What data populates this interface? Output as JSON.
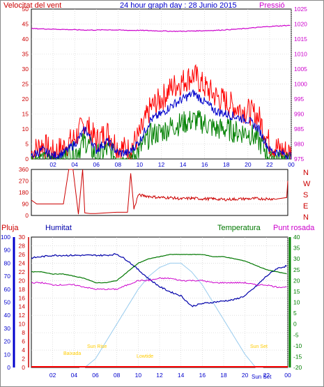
{
  "header": {
    "title": "24 hour graph day : 28 Junio 2015",
    "left_label": "Velocitat del vent",
    "right_label": "Pressió"
  },
  "colors": {
    "wind_gust": "#ff0000",
    "wind_avg": "#0000cc",
    "wind_min": "#008000",
    "pressure": "#cc00cc",
    "direction": "#cc0000",
    "humidity": "#0000aa",
    "temperature": "#007700",
    "dewpoint": "#cc00cc",
    "solar": "#99ccee",
    "rain": "#ff0000",
    "sun_label": "#ffcc00",
    "axis_left": "#cc0000",
    "axis_blue": "#0000cc",
    "axis_green": "#008000",
    "axis_pink": "#cc00cc",
    "grid": "#cccccc",
    "frame": "#000000"
  },
  "chart_data": [
    {
      "type": "line",
      "title": "24 hour graph day : 28 Junio 2015",
      "xlabel": "",
      "x_ticks": [
        "02",
        "04",
        "06",
        "08",
        "10",
        "12",
        "14",
        "16",
        "18",
        "20",
        "22",
        "00"
      ],
      "left_axis": {
        "label": "Velocitat del vent",
        "range": [
          0,
          50
        ],
        "ticks": [
          0,
          5,
          10,
          15,
          20,
          25,
          30,
          35,
          40,
          45,
          50
        ]
      },
      "right_axis": {
        "label": "Pressió",
        "range": [
          975,
          1025
        ],
        "ticks": [
          975,
          980,
          985,
          990,
          995,
          1000,
          1005,
          1010,
          1015,
          1020,
          1025
        ]
      },
      "grid": true,
      "hours": [
        0,
        1,
        2,
        3,
        4,
        5,
        6,
        7,
        8,
        9,
        10,
        11,
        12,
        13,
        14,
        15,
        16,
        17,
        18,
        19,
        20,
        21,
        22,
        23,
        24
      ],
      "series": [
        {
          "key": "gust",
          "values": [
            2,
            5,
            2,
            4,
            7,
            12,
            6,
            9,
            4,
            3,
            8,
            17,
            20,
            24,
            26,
            28,
            24,
            21,
            19,
            17,
            16,
            14,
            5,
            3,
            2
          ]
        },
        {
          "key": "avg",
          "values": [
            1,
            3,
            1,
            2,
            5,
            10,
            3,
            6,
            2,
            2,
            6,
            13,
            15,
            18,
            20,
            22,
            19,
            16,
            15,
            14,
            13,
            10,
            3,
            2,
            1
          ]
        },
        {
          "key": "min",
          "values": [
            0,
            1,
            0,
            1,
            2,
            6,
            1,
            3,
            0,
            0,
            3,
            8,
            9,
            11,
            12,
            13,
            12,
            10,
            10,
            9,
            9,
            6,
            1,
            1,
            0
          ]
        },
        {
          "key": "pressure",
          "axis": "right",
          "values": [
            1018.5,
            1018.4,
            1018.3,
            1018.2,
            1018.1,
            1018.0,
            1018.0,
            1018.1,
            1018.0,
            1017.9,
            1017.9,
            1017.8,
            1017.7,
            1017.6,
            1017.6,
            1017.7,
            1017.8,
            1017.9,
            1018.1,
            1018.3,
            1018.6,
            1018.9,
            1019.2,
            1019.4,
            1019.6
          ]
        }
      ]
    },
    {
      "type": "line",
      "title": "",
      "left_axis": {
        "range": [
          0,
          360
        ],
        "ticks": [
          0,
          90,
          180,
          270,
          360
        ]
      },
      "right_axis_labels": [
        "N",
        "W",
        "S",
        "E",
        "N"
      ],
      "grid": true,
      "hours": [
        0,
        0.5,
        1,
        2,
        3,
        3.5,
        3.9,
        4.4,
        4.8,
        5,
        5.5,
        6,
        7,
        8,
        9,
        9.3,
        9.6,
        10,
        11,
        12,
        13,
        14,
        15,
        16,
        17,
        18,
        19,
        20,
        21,
        22,
        23,
        23.9,
        24
      ],
      "series": [
        {
          "key": "direction",
          "values": [
            120,
            90,
            90,
            90,
            90,
            360,
            360,
            10,
            360,
            20,
            15,
            15,
            20,
            25,
            25,
            330,
            50,
            160,
            150,
            140,
            140,
            130,
            135,
            130,
            130,
            125,
            128,
            130,
            132,
            130,
            130,
            140,
            270
          ]
        }
      ]
    },
    {
      "type": "line",
      "title": "",
      "x_ticks": [
        "02",
        "04",
        "06",
        "08",
        "10",
        "12",
        "14",
        "16",
        "18",
        "20",
        "22",
        "00"
      ],
      "axes": {
        "rain": {
          "label": "Pluja",
          "range": [
            0,
            100
          ],
          "ticks": [
            0,
            10,
            20,
            30,
            40,
            50,
            60,
            70,
            80,
            90,
            100
          ]
        },
        "humidity": {
          "label": "Humitat",
          "range": [
            0,
            30
          ],
          "ticks": [
            0,
            2,
            4,
            6,
            8,
            10,
            12,
            14,
            16,
            18,
            20,
            22,
            24,
            26,
            28,
            30
          ]
        },
        "temperature": {
          "label": "Temperatura",
          "range": [
            -20,
            40
          ],
          "ticks": [
            -20,
            -15,
            -10,
            -5,
            0,
            5,
            10,
            15,
            20,
            25,
            30,
            35,
            40
          ]
        },
        "dewpoint": {
          "label": "Punt rosada"
        }
      },
      "annotations": {
        "sunrise": "Sun Rise",
        "sunset": "Sun Set",
        "moonrise": "Baixada",
        "moonset": "Lowtide",
        "sunset2": "Sun Set"
      },
      "hours": [
        0,
        1,
        2,
        3,
        4,
        5,
        6,
        7,
        8,
        9,
        10,
        11,
        12,
        13,
        14,
        15,
        16,
        17,
        18,
        19,
        20,
        21,
        22,
        23,
        24
      ],
      "series": [
        {
          "key": "humidity",
          "axis": "humidity",
          "values": [
            84,
            85,
            86,
            86,
            86,
            86,
            86,
            86,
            87,
            82,
            75,
            68,
            62,
            58,
            55,
            47,
            49,
            50,
            51,
            52,
            55,
            62,
            70,
            76,
            78
          ]
        },
        {
          "key": "temperature",
          "axis": "temperature",
          "values": [
            24,
            24,
            23,
            23,
            22,
            21,
            19,
            19,
            20,
            24,
            28,
            30,
            31,
            32,
            32,
            32,
            32,
            31,
            31,
            30,
            29,
            27,
            25,
            24,
            23
          ]
        },
        {
          "key": "dewpoint",
          "axis": "temperature",
          "values": [
            19,
            19,
            18,
            18,
            18,
            17,
            16,
            16,
            16,
            18,
            20,
            20,
            21,
            21,
            20,
            20,
            20,
            19,
            19,
            19,
            19,
            18,
            18,
            17,
            17
          ]
        },
        {
          "key": "solar",
          "axis": "humidity",
          "values": [
            0,
            0,
            0,
            0,
            0,
            0,
            2,
            6,
            10,
            14,
            18,
            21,
            23,
            24,
            24,
            22,
            19,
            15,
            11,
            7,
            3,
            0,
            0,
            0,
            0
          ]
        },
        {
          "key": "rain",
          "axis": "rain",
          "values": [
            0,
            0,
            0,
            0,
            0,
            0,
            0,
            0,
            0,
            0,
            0,
            0,
            0,
            0,
            0,
            0,
            0,
            0,
            0,
            0,
            0,
            0,
            0,
            0,
            0
          ]
        }
      ]
    }
  ]
}
